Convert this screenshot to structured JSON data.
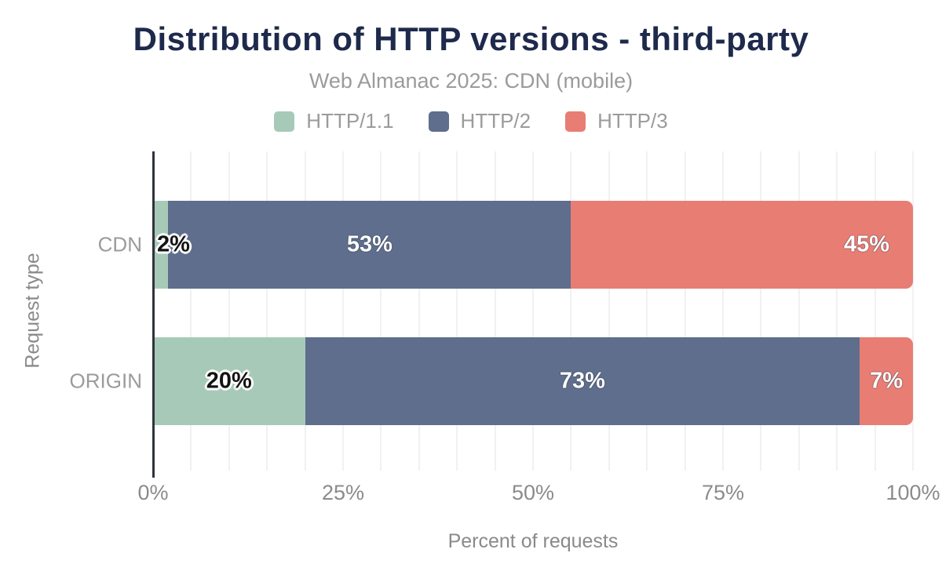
{
  "chart_data": {
    "type": "bar",
    "orientation": "horizontal",
    "stacked": true,
    "title": "Distribution of HTTP versions - third-party",
    "subtitle": "Web Almanac 2025: CDN (mobile)",
    "categories": [
      "CDN",
      "ORIGIN"
    ],
    "series": [
      {
        "name": "HTTP/1.1",
        "color": "#a7cab8",
        "values": [
          2,
          20
        ],
        "labels": [
          "2%",
          "20%"
        ],
        "label_style": "dark",
        "label_align": [
          "start",
          "center"
        ]
      },
      {
        "name": "HTTP/2",
        "color": "#5e6e8c",
        "values": [
          53,
          73
        ],
        "labels": [
          "53%",
          "73%"
        ],
        "label_style": "light",
        "label_align": [
          "center",
          "center"
        ]
      },
      {
        "name": "HTTP/3",
        "color": "#e87d74",
        "values": [
          45,
          7
        ],
        "labels": [
          "45%",
          "7%"
        ],
        "label_style": "light",
        "label_align": [
          "end",
          "center"
        ]
      }
    ],
    "xlabel": "Percent of requests",
    "ylabel": "Request type",
    "xlim": [
      0,
      100
    ],
    "xticks": [
      {
        "value": 0,
        "label": "0%"
      },
      {
        "value": 25,
        "label": "25%"
      },
      {
        "value": 50,
        "label": "50%"
      },
      {
        "value": 75,
        "label": "75%"
      },
      {
        "value": 100,
        "label": "100%"
      }
    ],
    "gridlines": {
      "step": 5,
      "color": "#f1f1f1"
    },
    "legend_position": "top",
    "style": {
      "title_color": "#1e2a4c",
      "subtitle_color": "#9b9b9b",
      "axis_text_color": "#8b8b8b",
      "axis_line_color": "#2f333c",
      "background": "#ffffff"
    }
  }
}
